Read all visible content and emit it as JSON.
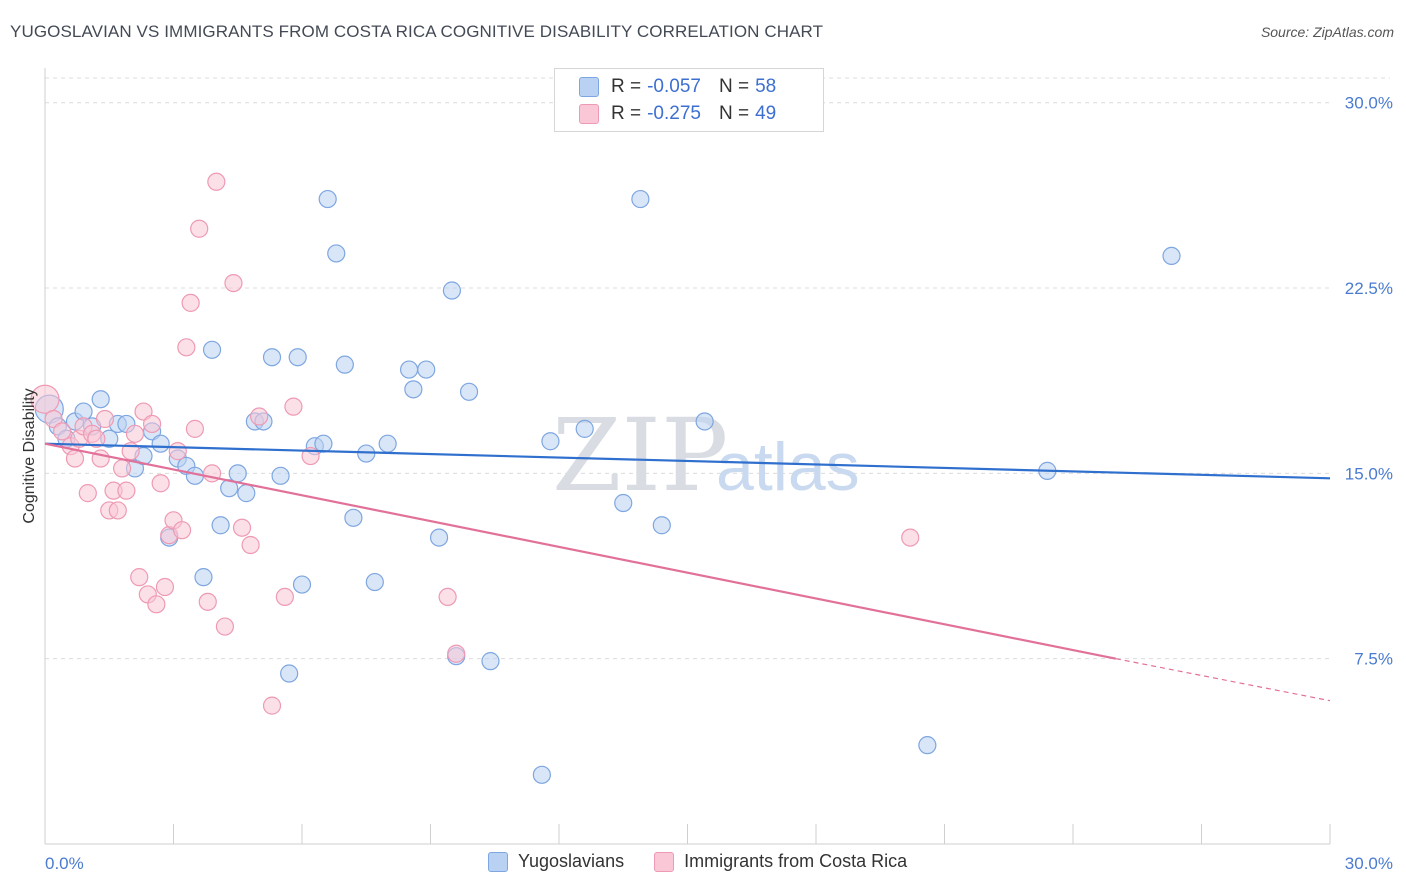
{
  "title": "YUGOSLAVIAN VS IMMIGRANTS FROM COSTA RICA COGNITIVE DISABILITY CORRELATION CHART",
  "source": "Source: ZipAtlas.com",
  "watermark": {
    "zip": "ZIP",
    "atlas": "atlas"
  },
  "legend": {
    "rows": [
      {
        "r_label": "R =",
        "r_value": "-0.057",
        "n_label": "N =",
        "n_value": "58",
        "fill": "#b9d2f3",
        "stroke": "#7ea6e0"
      },
      {
        "r_label": "R =",
        "r_value": "-0.275",
        "n_label": "N =",
        "n_value": "49",
        "fill": "#f9c7d6",
        "stroke": "#ee9ab4"
      }
    ]
  },
  "bottom_legend": [
    {
      "label": "Yugoslavians",
      "fill": "#b9d2f3",
      "stroke": "#7ea6e0"
    },
    {
      "label": "Immigrants from Costa Rica",
      "fill": "#f9c7d6",
      "stroke": "#ee9ab4"
    }
  ],
  "chart_data": {
    "type": "scatter",
    "title": "YUGOSLAVIAN VS IMMIGRANTS FROM COSTA RICA COGNITIVE DISABILITY CORRELATION CHART",
    "xlabel": "",
    "ylabel": "Cognitive Disability",
    "xlim": [
      0,
      30
    ],
    "ylim": [
      0,
      31
    ],
    "x_tick_labels": [
      "0.0%",
      "30.0%"
    ],
    "y_ticks": [
      7.5,
      15.0,
      22.5,
      30.0
    ],
    "y_tick_labels": [
      "7.5%",
      "15.0%",
      "22.5%",
      "30.0%"
    ],
    "grid": "horizontal dashed",
    "legend_position": "top-center",
    "series": [
      {
        "name": "Yugoslavians",
        "color": "#7ea6e0",
        "fill": "#b9d2f3",
        "trend": {
          "x": [
            0,
            30
          ],
          "y": [
            16.2,
            14.8
          ],
          "color": "#2f6fce"
        },
        "points": [
          [
            0.1,
            17.6
          ],
          [
            0.3,
            16.9
          ],
          [
            0.5,
            16.4
          ],
          [
            0.7,
            17.1
          ],
          [
            0.9,
            17.5
          ],
          [
            1.1,
            16.9
          ],
          [
            1.3,
            18.0
          ],
          [
            1.5,
            16.4
          ],
          [
            1.7,
            17.0
          ],
          [
            1.9,
            17.0
          ],
          [
            2.1,
            15.2
          ],
          [
            2.3,
            15.7
          ],
          [
            2.5,
            16.7
          ],
          [
            2.7,
            16.2
          ],
          [
            2.9,
            12.4
          ],
          [
            3.1,
            15.6
          ],
          [
            3.3,
            15.3
          ],
          [
            3.5,
            14.9
          ],
          [
            3.7,
            10.8
          ],
          [
            3.9,
            20.0
          ],
          [
            4.1,
            12.9
          ],
          [
            4.3,
            14.4
          ],
          [
            4.5,
            15.0
          ],
          [
            4.7,
            14.2
          ],
          [
            4.9,
            17.1
          ],
          [
            5.1,
            17.1
          ],
          [
            5.3,
            19.7
          ],
          [
            5.5,
            14.9
          ],
          [
            5.7,
            6.9
          ],
          [
            6.0,
            10.5
          ],
          [
            5.9,
            19.7
          ],
          [
            6.3,
            16.1
          ],
          [
            6.5,
            16.2
          ],
          [
            6.6,
            26.1
          ],
          [
            6.8,
            23.9
          ],
          [
            7.0,
            19.4
          ],
          [
            7.2,
            13.2
          ],
          [
            7.5,
            15.8
          ],
          [
            7.7,
            10.6
          ],
          [
            8.0,
            16.2
          ],
          [
            8.5,
            19.2
          ],
          [
            8.6,
            18.4
          ],
          [
            8.9,
            19.2
          ],
          [
            9.2,
            12.4
          ],
          [
            9.5,
            22.4
          ],
          [
            9.6,
            7.6
          ],
          [
            9.9,
            18.3
          ],
          [
            10.4,
            7.4
          ],
          [
            11.6,
            2.8
          ],
          [
            11.8,
            16.3
          ],
          [
            12.6,
            16.8
          ],
          [
            13.5,
            13.8
          ],
          [
            13.9,
            26.1
          ],
          [
            14.4,
            12.9
          ],
          [
            15.4,
            17.1
          ],
          [
            20.6,
            4.0
          ],
          [
            23.4,
            15.1
          ],
          [
            26.3,
            23.8
          ]
        ]
      },
      {
        "name": "Immigrants from Costa Rica",
        "color": "#ee9ab4",
        "fill": "#f9c7d6",
        "trend": {
          "x": [
            0,
            25
          ],
          "y": [
            16.2,
            7.5
          ],
          "dashed_to": [
            30,
            5.8
          ],
          "color": "#e2719a"
        },
        "points": [
          [
            0.0,
            18.0
          ],
          [
            0.2,
            17.2
          ],
          [
            0.4,
            16.7
          ],
          [
            0.6,
            16.1
          ],
          [
            0.7,
            15.6
          ],
          [
            0.8,
            16.4
          ],
          [
            0.9,
            16.9
          ],
          [
            1.0,
            14.2
          ],
          [
            1.1,
            16.6
          ],
          [
            1.2,
            16.4
          ],
          [
            1.3,
            15.6
          ],
          [
            1.4,
            17.2
          ],
          [
            1.5,
            13.5
          ],
          [
            1.6,
            14.3
          ],
          [
            1.7,
            13.5
          ],
          [
            1.8,
            15.2
          ],
          [
            1.9,
            14.3
          ],
          [
            2.0,
            15.9
          ],
          [
            2.1,
            16.6
          ],
          [
            2.2,
            10.8
          ],
          [
            2.3,
            17.5
          ],
          [
            2.4,
            10.1
          ],
          [
            2.5,
            17.0
          ],
          [
            2.6,
            9.7
          ],
          [
            2.7,
            14.6
          ],
          [
            2.8,
            10.4
          ],
          [
            2.9,
            12.5
          ],
          [
            3.0,
            13.1
          ],
          [
            3.1,
            15.9
          ],
          [
            3.2,
            12.7
          ],
          [
            3.3,
            20.1
          ],
          [
            3.4,
            21.9
          ],
          [
            3.5,
            16.8
          ],
          [
            3.6,
            24.9
          ],
          [
            3.8,
            9.8
          ],
          [
            4.0,
            26.8
          ],
          [
            4.2,
            8.8
          ],
          [
            4.4,
            22.7
          ],
          [
            4.6,
            12.8
          ],
          [
            4.8,
            12.1
          ],
          [
            5.0,
            17.3
          ],
          [
            5.3,
            5.6
          ],
          [
            5.6,
            10.0
          ],
          [
            5.8,
            17.7
          ],
          [
            6.2,
            15.7
          ],
          [
            9.4,
            10.0
          ],
          [
            9.6,
            7.7
          ],
          [
            20.2,
            12.4
          ],
          [
            3.9,
            15.0
          ]
        ]
      }
    ]
  }
}
